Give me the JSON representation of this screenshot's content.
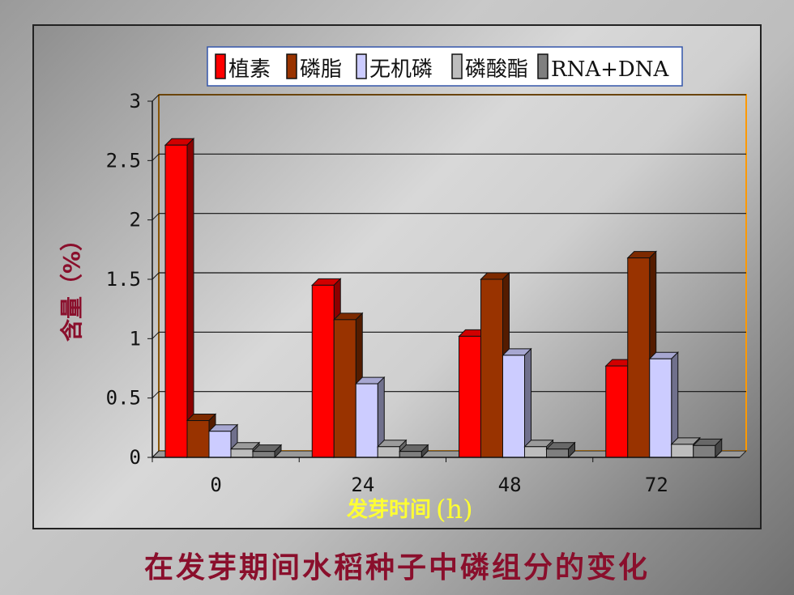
{
  "caption": "在发芽期间水稻种子中磷组分的变化",
  "chart_data": {
    "type": "bar",
    "categories": [
      "0",
      "24",
      "48",
      "72"
    ],
    "series": [
      {
        "name": "植素",
        "color": "#ff0000",
        "values": [
          2.63,
          1.45,
          1.02,
          0.77
        ]
      },
      {
        "name": "磷脂",
        "color": "#993300",
        "values": [
          0.31,
          1.16,
          1.5,
          1.68
        ]
      },
      {
        "name": "无机磷",
        "color": "#ccccff",
        "values": [
          0.22,
          0.62,
          0.86,
          0.83
        ]
      },
      {
        "name": "磷酸酯",
        "color": "#bdbdbd",
        "values": [
          0.07,
          0.09,
          0.09,
          0.11
        ]
      },
      {
        "name": "RNA+DNA",
        "color": "#7f7f7f",
        "values": [
          0.05,
          0.05,
          0.07,
          0.1
        ]
      }
    ],
    "yticks": [
      "0",
      "0.5",
      "1",
      "1.5",
      "2",
      "2.5",
      "3"
    ],
    "ylim": [
      0,
      3
    ],
    "ylabel": "含量（%）",
    "xlabel": "发芽时间",
    "xlabel_unit": "(h)",
    "grid": true,
    "legend_position": "top"
  }
}
